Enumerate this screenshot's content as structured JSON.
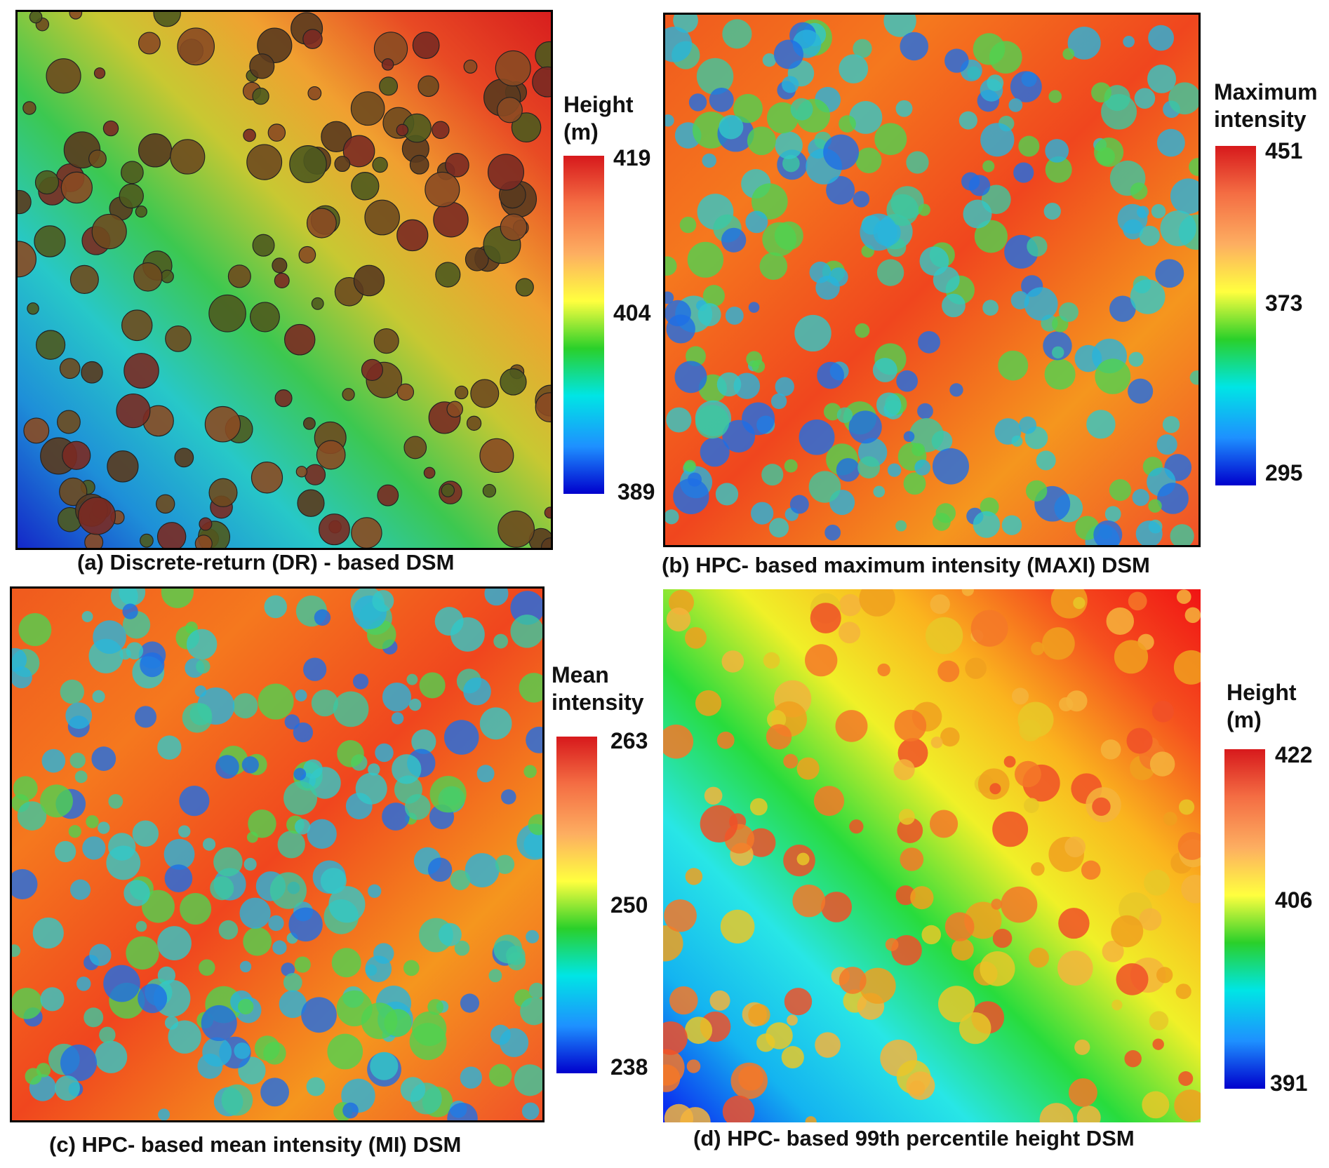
{
  "panels": [
    {
      "caption": "(a) Discrete-return (DR) - based DSM",
      "legend": {
        "title_lines": [
          "Height",
          "(m)"
        ],
        "ticks": [
          "419",
          "404",
          "389"
        ]
      },
      "palette": "elevation",
      "crown_style": "dark",
      "gradient_dir": "bl-tr"
    },
    {
      "caption": "(b) HPC- based maximum intensity (MAXI) DSM",
      "legend": {
        "title_lines": [
          "Maximum",
          "intensity"
        ],
        "ticks": [
          "451",
          "373",
          "295"
        ]
      },
      "palette": "intensity",
      "crown_style": "cool",
      "gradient_dir": "none"
    },
    {
      "caption": "(c) HPC- based mean intensity (MI) DSM",
      "legend": {
        "title_lines": [
          "Mean",
          "intensity"
        ],
        "ticks": [
          "263",
          "250",
          "238"
        ]
      },
      "palette": "intensity",
      "crown_style": "cool",
      "gradient_dir": "none"
    },
    {
      "caption": "(d) HPC- based 99th percentile height DSM",
      "legend": {
        "title_lines": [
          "Height",
          "(m)"
        ],
        "ticks": [
          "422",
          "406",
          "391"
        ]
      },
      "palette": "elevation",
      "crown_style": "warm",
      "gradient_dir": "bl-tr"
    }
  ],
  "colorbar_colors": [
    "#d7191c",
    "#f46d43",
    "#fdae61",
    "#ffff3f",
    "#2ad02a",
    "#00e5e5",
    "#1e90ff",
    "#0000cd"
  ]
}
